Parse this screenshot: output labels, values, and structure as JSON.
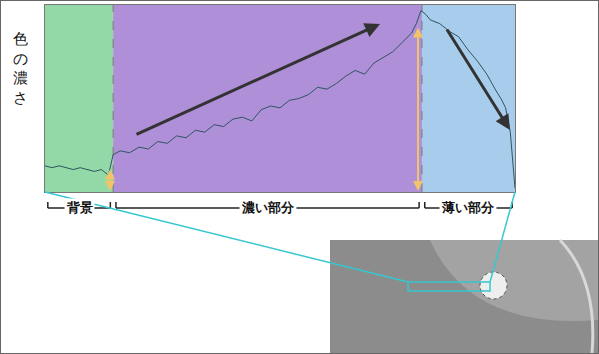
{
  "chart_data": {
    "type": "line",
    "y_label": "色の濃さ",
    "xlim": [
      0,
      100
    ],
    "ylim": [
      0,
      100
    ],
    "xticks": [],
    "yticks": [],
    "tick_labels": false,
    "grid": false,
    "regions": [
      {
        "label": "背景",
        "start": 0,
        "end": 14.5,
        "color": "#93d9a8"
      },
      {
        "label": "濃い部分",
        "start": 14.5,
        "end": 80.2,
        "color": "#ae8fd8"
      },
      {
        "label": "薄い部分",
        "start": 80.2,
        "end": 100,
        "color": "#a8cdec"
      }
    ],
    "series": [
      {
        "color": "#2e5560",
        "x": [
          0,
          1.5,
          3,
          4.5,
          6,
          7.5,
          9,
          10.5,
          12,
          13.5,
          14.5,
          16,
          18,
          20,
          22,
          24,
          26,
          28,
          30,
          32,
          34,
          36,
          38,
          40,
          42,
          44,
          46,
          48,
          50,
          52,
          54,
          56,
          58,
          60,
          62,
          64,
          66,
          68,
          70,
          72,
          74,
          76,
          78,
          79,
          80,
          81,
          82,
          84,
          86,
          88,
          90,
          92,
          94,
          96,
          97,
          98,
          99,
          100
        ],
        "values": [
          14,
          13,
          14,
          13,
          12,
          13,
          12,
          11,
          12,
          9,
          20,
          22,
          21,
          24,
          23,
          27,
          26,
          30,
          29,
          33,
          32,
          36,
          35,
          39,
          40,
          38,
          44,
          46,
          45,
          49,
          50,
          52,
          56,
          55,
          58,
          62,
          65,
          63,
          69,
          72,
          75,
          80,
          85,
          90,
          97,
          95,
          92,
          90,
          86,
          83,
          76,
          70,
          63,
          54,
          50,
          45,
          32,
          2
        ]
      }
    ]
  }
}
